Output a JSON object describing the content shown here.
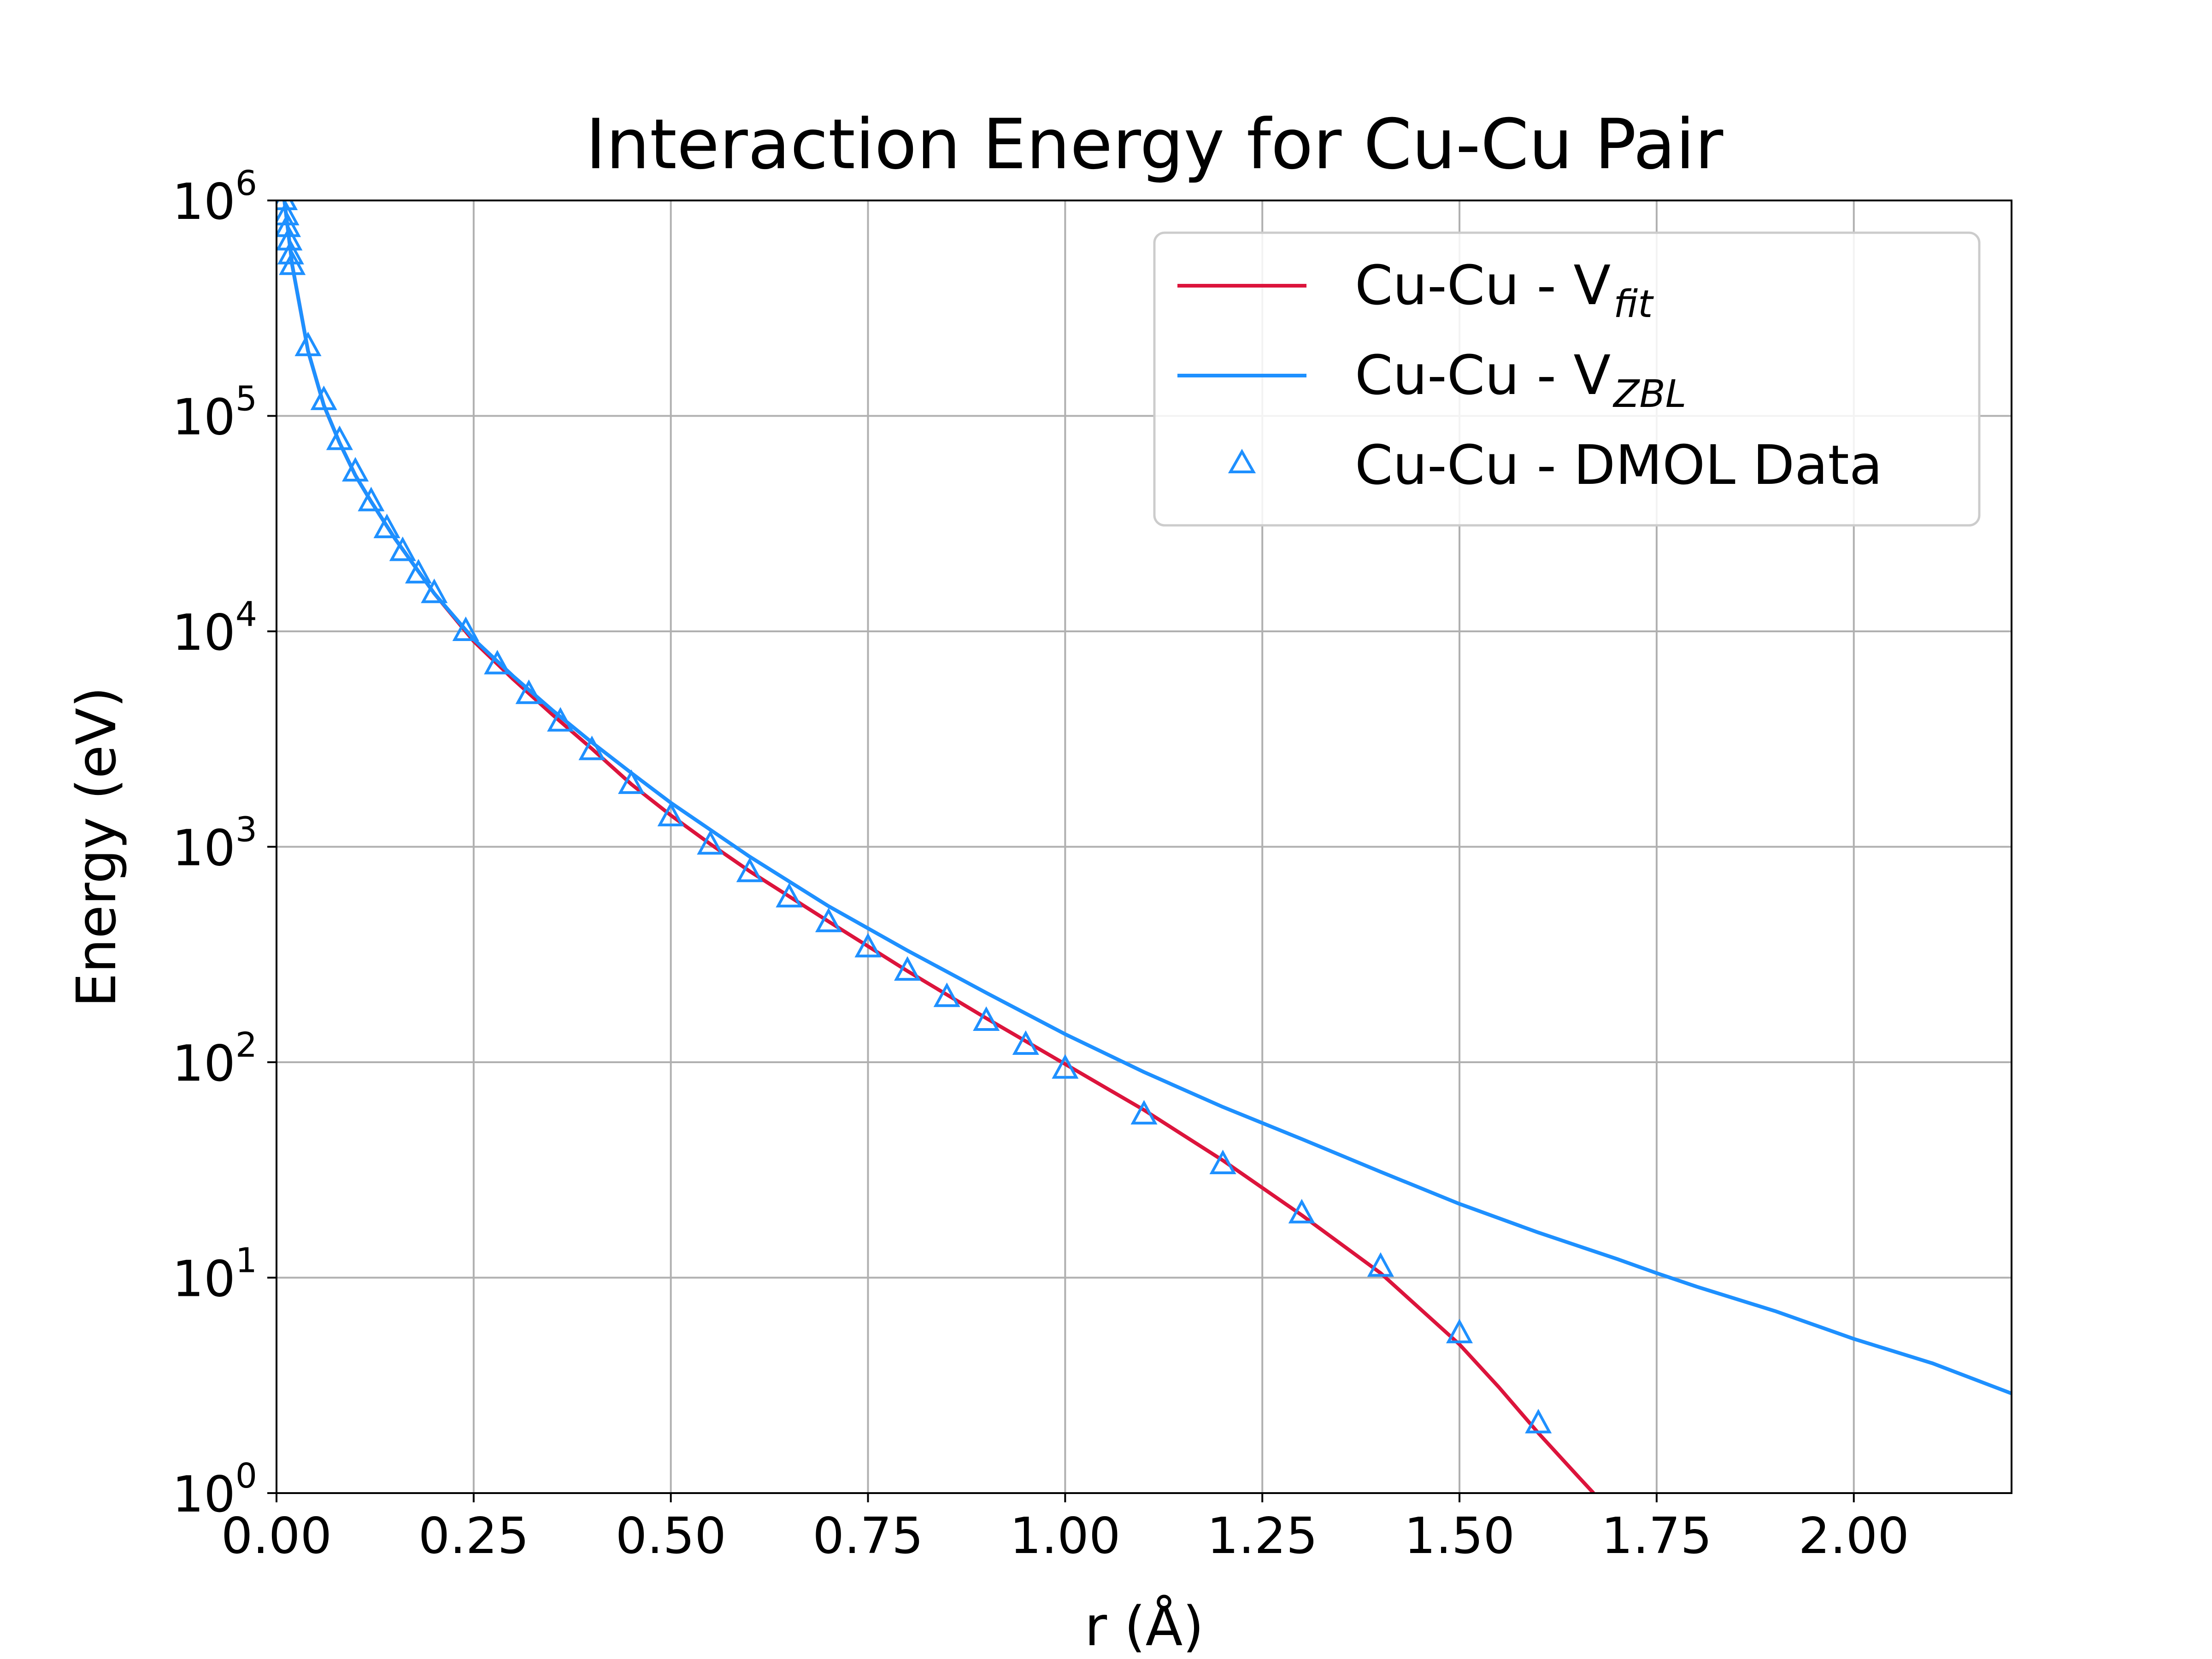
{
  "chart_data": {
    "type": "line",
    "title": "Interaction Energy for Cu-Cu Pair",
    "xlabel": "r (Å)",
    "ylabel": "Energy (eV)",
    "x_scale": "linear",
    "y_scale": "log",
    "xlim": [
      0.0,
      2.2
    ],
    "ylim": [
      1,
      1000000
    ],
    "grid": true,
    "legend_position": "top-right",
    "x_ticks": [
      "0.00",
      "0.25",
      "0.50",
      "0.75",
      "1.00",
      "1.25",
      "1.50",
      "1.75",
      "2.00"
    ],
    "y_ticks": [
      {
        "base": "10",
        "exp": "0",
        "value": 1
      },
      {
        "base": "10",
        "exp": "1",
        "value": 10
      },
      {
        "base": "10",
        "exp": "2",
        "value": 100
      },
      {
        "base": "10",
        "exp": "3",
        "value": 1000
      },
      {
        "base": "10",
        "exp": "4",
        "value": 10000
      },
      {
        "base": "10",
        "exp": "5",
        "value": 100000
      },
      {
        "base": "10",
        "exp": "6",
        "value": 1000000
      }
    ],
    "series": [
      {
        "name": "Cu-Cu - V",
        "subscript": "fit",
        "kind": "line",
        "color": "#dc143c",
        "x": [
          0.01,
          0.02,
          0.04,
          0.06,
          0.08,
          0.1,
          0.12,
          0.15,
          0.2,
          0.25,
          0.3,
          0.35,
          0.4,
          0.45,
          0.5,
          0.55,
          0.6,
          0.7,
          0.8,
          0.9,
          1.0,
          1.1,
          1.2,
          1.3,
          1.4,
          1.5,
          1.55,
          1.6,
          1.65,
          1.67
        ],
        "y": [
          1000000,
          500000,
          200000,
          112000,
          75000,
          53000,
          40000,
          27000,
          15000,
          9000,
          6000,
          4100,
          2850,
          1950,
          1400,
          1030,
          770,
          450,
          265,
          160,
          98,
          60,
          35,
          19.5,
          10.5,
          4.9,
          3.1,
          1.9,
          1.2,
          1.0
        ]
      },
      {
        "name": "Cu-Cu - V",
        "subscript": "ZBL",
        "kind": "line",
        "color": "#1e90ff",
        "x": [
          0.01,
          0.02,
          0.04,
          0.06,
          0.08,
          0.1,
          0.12,
          0.15,
          0.2,
          0.25,
          0.3,
          0.35,
          0.4,
          0.45,
          0.5,
          0.55,
          0.6,
          0.7,
          0.8,
          0.9,
          1.0,
          1.1,
          1.2,
          1.3,
          1.4,
          1.5,
          1.6,
          1.7,
          1.75,
          1.8,
          1.9,
          2.0,
          2.1,
          2.2
        ],
        "y": [
          1000000,
          500000,
          200000,
          112000,
          75000,
          53000,
          40000,
          27000,
          15000,
          9200,
          6200,
          4300,
          3050,
          2200,
          1600,
          1200,
          900,
          530,
          330,
          210,
          135,
          90,
          62,
          44,
          31,
          22,
          16.2,
          12.2,
          10.5,
          9.1,
          7.0,
          5.2,
          4.0,
          2.9
        ]
      },
      {
        "name": "Cu-Cu - DMOL Data",
        "kind": "scatter",
        "marker": "triangle",
        "color": "#1e90ff",
        "x": [
          0.01,
          0.012,
          0.014,
          0.016,
          0.018,
          0.02,
          0.04,
          0.06,
          0.08,
          0.1,
          0.12,
          0.14,
          0.16,
          0.18,
          0.2,
          0.24,
          0.28,
          0.32,
          0.36,
          0.4,
          0.45,
          0.5,
          0.55,
          0.6,
          0.65,
          0.7,
          0.75,
          0.8,
          0.85,
          0.9,
          0.95,
          1.0,
          1.1,
          1.2,
          1.3,
          1.4,
          1.5,
          1.6
        ],
        "y": [
          1000000,
          850000,
          750000,
          650000,
          560000,
          500000,
          210000,
          118000,
          77000,
          55000,
          40000,
          30000,
          23500,
          18500,
          15000,
          10000,
          7000,
          5100,
          3800,
          2800,
          1950,
          1380,
          1020,
          760,
          580,
          445,
          340,
          265,
          200,
          155,
          120,
          93,
          57,
          33.5,
          19.8,
          11.2,
          5.5,
          2.1
        ]
      }
    ]
  }
}
